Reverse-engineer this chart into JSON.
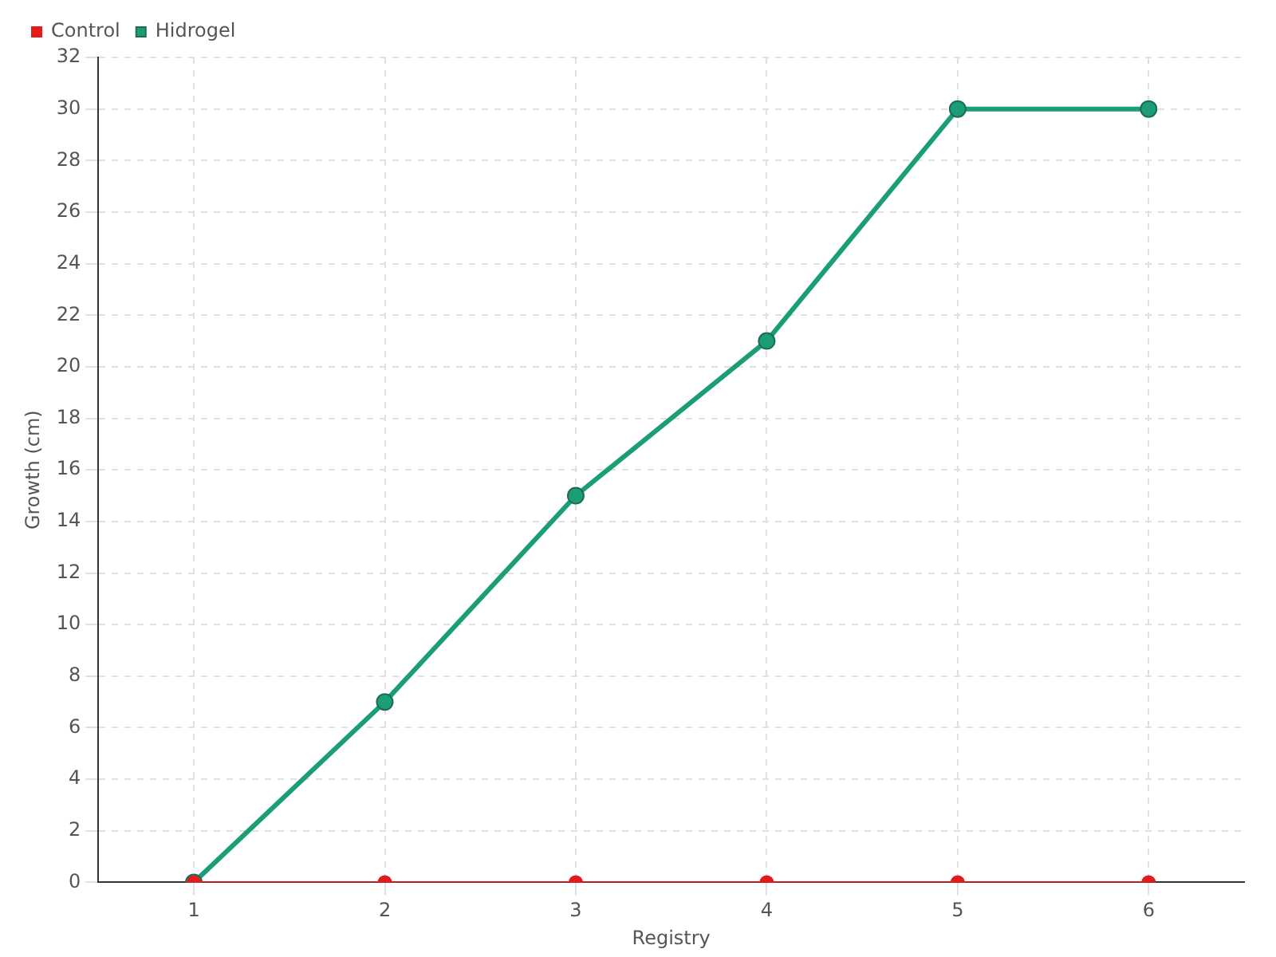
{
  "chart_data": {
    "type": "line",
    "xlabel": "Registry",
    "ylabel": "Growth (cm)",
    "categories": [
      "1",
      "2",
      "3",
      "4",
      "5",
      "6"
    ],
    "series": [
      {
        "name": "Hidrogel",
        "color": "#1b9e77",
        "values": [
          0,
          7,
          15,
          21,
          30,
          30
        ]
      },
      {
        "name": "Control",
        "color": "#e41a1c",
        "values": [
          0,
          0,
          0,
          0,
          0,
          0
        ]
      }
    ],
    "ylim": [
      0,
      32
    ],
    "yticks": [
      0,
      2,
      4,
      6,
      8,
      10,
      12,
      14,
      16,
      18,
      20,
      22,
      24,
      26,
      28,
      30,
      32
    ],
    "grid": true,
    "legend": "top left",
    "marker": "circle",
    "line_style": "solid"
  }
}
